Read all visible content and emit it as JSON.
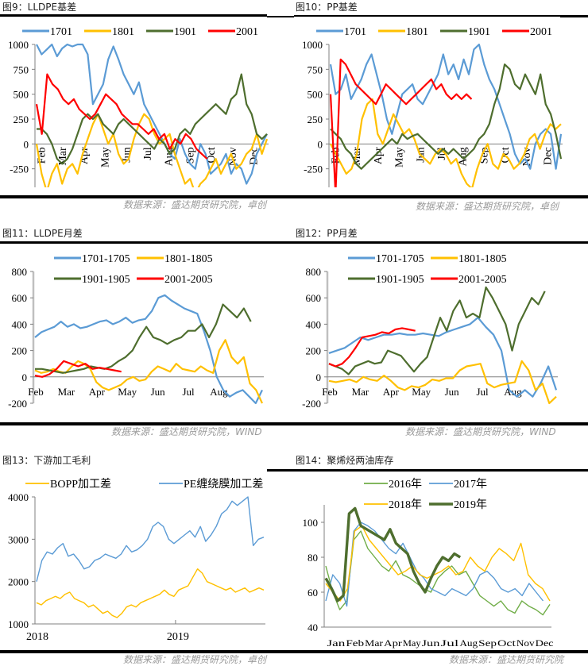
{
  "panels": [
    {
      "title": "图9：LLDPE基差",
      "source": "数据来源：盛达期货研究院，卓创"
    },
    {
      "title": "图10：PP基差",
      "source": "数据来源：盛达期货研究院，卓创"
    },
    {
      "title": "图11：LLDPE月差",
      "source": "数据来源：盛达期货研究院，WIND"
    },
    {
      "title": "图12：PP月差",
      "source": "数据来源：盛达期货研究院，WIND"
    },
    {
      "title": "图13：下游加工毛利",
      "source": "数据来源：盛达期货研究院，卓创"
    },
    {
      "title": "图14：聚烯烃两油库存",
      "source": "数据来源：盛达期货研究院"
    }
  ],
  "colors": {
    "blue": "#5b9bd5",
    "orange": "#ffc000",
    "green": "#4e6e2e",
    "red": "#ff0000",
    "lightgreen": "#70ad47"
  },
  "chart_data": [
    {
      "type": "line",
      "title": "LLDPE基差",
      "ylim": [
        -500,
        1000
      ],
      "yticks": [
        -500,
        -250,
        0,
        250,
        500,
        750,
        1000
      ],
      "categories": [
        "Feb",
        "Mar",
        "Apr",
        "May",
        "Jun",
        "Jul",
        "Aug",
        "Sep",
        "Oct",
        "Nov",
        "Dec"
      ],
      "legend": "top",
      "series": [
        {
          "name": "1701",
          "color": "blue",
          "values": [
            1000,
            900,
            950,
            1000,
            880,
            960,
            1000,
            980,
            1000,
            1000,
            900,
            400,
            500,
            600,
            850,
            980,
            850,
            700,
            600,
            500,
            620,
            400,
            300,
            200,
            100,
            0,
            -100,
            -150,
            50,
            -100,
            -200,
            -250,
            0,
            -100,
            -300,
            -250,
            -200,
            -100,
            -300,
            -200,
            -250,
            -400,
            -300,
            -100,
            0,
            100
          ]
        },
        {
          "name": "1801",
          "color": "orange",
          "values": [
            0,
            -300,
            -480,
            -300,
            -200,
            -400,
            -250,
            -200,
            -300,
            -100,
            50,
            200,
            300,
            150,
            0,
            100,
            -100,
            -200,
            -150,
            50,
            200,
            300,
            250,
            100,
            0,
            50,
            100,
            -100,
            -250,
            -400,
            -350,
            -500,
            -400,
            -350,
            -250,
            -150,
            -300,
            -200,
            -100,
            -250,
            -200,
            -100,
            -50,
            100,
            -100,
            50
          ]
        },
        {
          "name": "1901",
          "color": "green",
          "values": [
            150,
            150,
            100,
            0,
            -150,
            -200,
            -150,
            -50,
            100,
            250,
            300,
            250,
            300,
            200,
            150,
            100,
            200,
            250,
            200,
            150,
            100,
            50,
            0,
            -50,
            50,
            0,
            -100,
            -50,
            100,
            150,
            100,
            200,
            250,
            300,
            350,
            400,
            350,
            300,
            450,
            500,
            700,
            400,
            300,
            100,
            50,
            100
          ]
        },
        {
          "name": "2001",
          "color": "red",
          "values": [
            400,
            100,
            700,
            600,
            550,
            450,
            400,
            450,
            350,
            300,
            250,
            300,
            400,
            500,
            450,
            400,
            300,
            250,
            200,
            200,
            150,
            100,
            150,
            50,
            100,
            -50,
            50,
            0,
            100,
            50,
            -50,
            -100,
            -150
          ]
        }
      ]
    },
    {
      "type": "line",
      "title": "PP基差",
      "ylim": [
        -500,
        1000
      ],
      "yticks": [
        -500,
        -250,
        0,
        250,
        500,
        750,
        1000
      ],
      "categories": [
        "Feb",
        "Mar",
        "Apr",
        "May",
        "Jun",
        "Jul",
        "Aug",
        "Sep",
        "Oct",
        "Nov",
        "Dec"
      ],
      "legend": "top",
      "series": [
        {
          "name": "1701",
          "color": "blue",
          "values": [
            800,
            500,
            550,
            700,
            450,
            550,
            650,
            800,
            900,
            700,
            500,
            250,
            100,
            300,
            500,
            550,
            600,
            450,
            400,
            500,
            600,
            700,
            900,
            700,
            800,
            650,
            850,
            700,
            950,
            1000,
            800,
            650,
            550,
            400,
            250,
            100,
            -100,
            -200,
            -150,
            -250,
            0,
            100,
            150,
            100,
            -250,
            100
          ]
        },
        {
          "name": "1801",
          "color": "orange",
          "values": [
            0,
            -100,
            -200,
            -300,
            -250,
            -100,
            250,
            400,
            450,
            100,
            0,
            150,
            300,
            200,
            100,
            150,
            50,
            -100,
            -150,
            -200,
            -100,
            -50,
            -100,
            -200,
            -150,
            -300,
            -400,
            -450,
            -250,
            -100,
            0,
            -200,
            -250,
            -100,
            -150,
            -250,
            -200,
            -100,
            50,
            100,
            -50,
            100,
            200,
            150,
            200
          ]
        },
        {
          "name": "1901",
          "color": "green",
          "values": [
            150,
            100,
            50,
            -50,
            -100,
            -200,
            -250,
            -200,
            -150,
            -100,
            -50,
            0,
            50,
            0,
            100,
            50,
            80,
            100,
            50,
            0,
            -50,
            -100,
            -50,
            -100,
            -50,
            -100,
            -150,
            -100,
            -50,
            50,
            100,
            200,
            400,
            550,
            800,
            750,
            600,
            550,
            700,
            600,
            500,
            700,
            400,
            300,
            100,
            -150
          ]
        },
        {
          "name": "2001",
          "color": "red",
          "values": [
            500,
            -500,
            850,
            800,
            700,
            600,
            550,
            500,
            450,
            400,
            500,
            600,
            550,
            500,
            450,
            400,
            450,
            500,
            550,
            600,
            650,
            550,
            600,
            500,
            450,
            500,
            450,
            500,
            450
          ]
        }
      ]
    },
    {
      "type": "line",
      "title": "LLDPE月差",
      "ylim": [
        -200,
        800
      ],
      "yticks": [
        -200,
        0,
        200,
        400,
        600,
        800
      ],
      "categories": [
        "Feb",
        "Mar",
        "Apr",
        "May",
        "Jun",
        "Jul",
        "Aug"
      ],
      "legend": "top",
      "series": [
        {
          "name": "1701-1705",
          "color": "blue",
          "values": [
            300,
            340,
            360,
            380,
            420,
            380,
            400,
            370,
            380,
            400,
            420,
            430,
            400,
            420,
            450,
            410,
            430,
            440,
            500,
            600,
            620,
            580,
            550,
            520,
            500,
            480,
            350,
            200,
            0,
            -100,
            -150,
            -120,
            -100,
            -150,
            -200,
            -100
          ]
        },
        {
          "name": "1801-1805",
          "color": "orange",
          "values": [
            50,
            30,
            40,
            60,
            40,
            30,
            80,
            120,
            100,
            60,
            -40,
            -80,
            -100,
            -80,
            -60,
            -20,
            0,
            -30,
            -20,
            40,
            80,
            60,
            40,
            100,
            60,
            50,
            40,
            80,
            50,
            30,
            200,
            280,
            150,
            100,
            150,
            -50,
            -100,
            -200
          ]
        },
        {
          "name": "1901-1905",
          "color": "green",
          "values": [
            60,
            60,
            50,
            40,
            30,
            40,
            50,
            60,
            80,
            70,
            60,
            80,
            120,
            150,
            200,
            300,
            380,
            300,
            280,
            250,
            280,
            300,
            350,
            350,
            400,
            300,
            400,
            550,
            500,
            450,
            520,
            420
          ]
        },
        {
          "name": "2001-2005",
          "color": "red",
          "values": [
            10,
            0,
            20,
            60,
            120,
            100,
            80,
            100,
            60,
            70,
            60,
            50,
            40
          ]
        }
      ]
    },
    {
      "type": "line",
      "title": "PP月差",
      "ylim": [
        -200,
        800
      ],
      "yticks": [
        -200,
        0,
        200,
        400,
        600,
        800
      ],
      "categories": [
        "Feb",
        "Mar",
        "Apr",
        "May",
        "Jun",
        "Jul",
        "Aug"
      ],
      "legend": "top",
      "series": [
        {
          "name": "1701-1705",
          "color": "blue",
          "values": [
            180,
            200,
            220,
            260,
            300,
            280,
            300,
            320,
            320,
            330,
            320,
            320,
            330,
            320,
            310,
            340,
            360,
            380,
            400,
            450,
            380,
            320,
            200,
            -100,
            -150,
            -100,
            -150,
            -50,
            80,
            -100
          ]
        },
        {
          "name": "1801-1805",
          "color": "orange",
          "values": [
            -30,
            -40,
            -30,
            -20,
            -40,
            0,
            -20,
            -30,
            10,
            -30,
            -80,
            -100,
            -70,
            -80,
            -60,
            -20,
            -30,
            -10,
            -10,
            50,
            80,
            90,
            100,
            -50,
            -80,
            -60,
            -50,
            -40,
            120,
            50,
            -100,
            -50,
            -200,
            -150
          ]
        },
        {
          "name": "1901-1905",
          "color": "green",
          "values": [
            100,
            80,
            60,
            20,
            80,
            100,
            120,
            100,
            110,
            200,
            180,
            160,
            100,
            40,
            100,
            150,
            300,
            450,
            350,
            500,
            580,
            450,
            480,
            450,
            680,
            600,
            500,
            400,
            200,
            400,
            500,
            600,
            550,
            650
          ]
        },
        {
          "name": "2001-2005",
          "color": "red",
          "values": [
            100,
            80,
            100,
            150,
            220,
            300,
            310,
            320,
            340,
            330,
            360,
            370,
            360,
            350
          ]
        }
      ]
    },
    {
      "type": "line",
      "title": "下游加工毛利",
      "ylim": [
        1000,
        4000
      ],
      "yticks": [
        1000,
        2000,
        3000,
        4000
      ],
      "xticks": [
        "2018",
        "2019"
      ],
      "legend": "top",
      "series": [
        {
          "name": "BOPP加工差",
          "color": "orange",
          "values": [
            1500,
            1450,
            1550,
            1600,
            1650,
            1600,
            1700,
            1750,
            1600,
            1550,
            1500,
            1400,
            1450,
            1350,
            1250,
            1300,
            1200,
            1150,
            1250,
            1400,
            1450,
            1400,
            1500,
            1550,
            1600,
            1650,
            1700,
            1800,
            1700,
            1650,
            1800,
            1850,
            1900,
            2100,
            2300,
            2200,
            2000,
            1950,
            1900,
            1850,
            1800,
            1850,
            1750,
            1800,
            1850,
            1750,
            1800,
            1850,
            1800
          ]
        },
        {
          "name": "PE缠绕膜加工差",
          "color": "blue",
          "values": [
            2000,
            2500,
            2700,
            2650,
            2800,
            2900,
            2600,
            2650,
            2500,
            2300,
            2350,
            2500,
            2550,
            2650,
            2600,
            2550,
            2650,
            2850,
            2700,
            2750,
            2850,
            3000,
            3300,
            3400,
            3300,
            3000,
            2900,
            3000,
            3100,
            3200,
            3050,
            3300,
            2950,
            3100,
            3300,
            3600,
            3700,
            3900,
            3800,
            3900,
            4000,
            2850,
            3000,
            3050
          ]
        }
      ]
    },
    {
      "type": "line",
      "title": "聚烯烃两油库存",
      "ylim": [
        40,
        110
      ],
      "yticks": [
        40,
        60,
        80,
        100
      ],
      "categories": [
        "Jan",
        "Feb",
        "Mar",
        "Apr",
        "May",
        "Jun",
        "Jul",
        "Aug",
        "Sep",
        "Oct",
        "Nov",
        "Dec"
      ],
      "legend": "top",
      "series": [
        {
          "name": "2016年",
          "color": "lightgreen",
          "values": [
            75,
            60,
            50,
            55,
            90,
            95,
            85,
            80,
            75,
            72,
            78,
            70,
            68,
            65,
            62,
            60,
            68,
            72,
            75,
            70,
            72,
            65,
            58,
            55,
            52,
            55,
            50,
            48,
            55,
            52,
            50,
            47,
            53
          ]
        },
        {
          "name": "2017年",
          "color": "blue",
          "values": [
            55,
            70,
            65,
            52,
            95,
            100,
            98,
            95,
            90,
            85,
            82,
            88,
            80,
            72,
            68,
            62,
            60,
            58,
            62,
            60,
            58,
            62,
            70,
            72,
            68,
            62,
            60,
            62,
            58,
            65,
            60,
            55
          ]
        },
        {
          "name": "2018年",
          "color": "orange",
          "values": [
            65,
            60,
            55,
            62,
            95,
            98,
            90,
            85,
            80,
            75,
            70,
            72,
            75,
            70,
            68,
            70,
            72,
            75,
            70,
            72,
            80,
            75,
            72,
            80,
            85,
            82,
            78,
            88,
            70,
            65,
            62,
            55
          ]
        },
        {
          "name": "2019年",
          "color": "green",
          "values": [
            68,
            62,
            55,
            58,
            105,
            108,
            98,
            96,
            94,
            92,
            90,
            96,
            88,
            85,
            82,
            72,
            65,
            60,
            68,
            75,
            80,
            78,
            82,
            80
          ]
        }
      ]
    }
  ]
}
